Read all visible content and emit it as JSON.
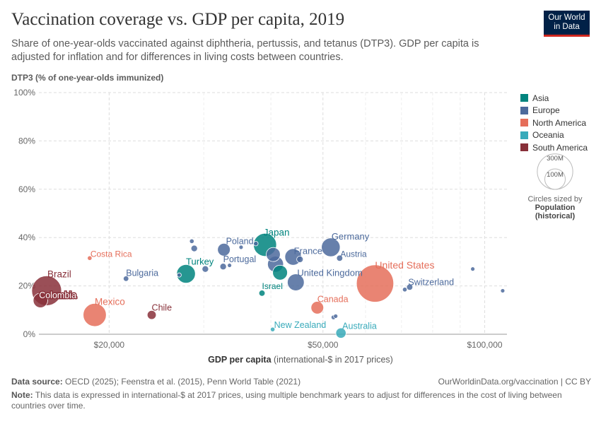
{
  "header": {
    "title": "Vaccination coverage vs. GDP per capita, 2019",
    "subtitle": "Share of one-year-olds vaccinated against diphtheria, pertussis, and tetanus (DTP3). GDP per capita is adjusted for inflation and for differences in living costs between countries.",
    "logo_line1": "Our World",
    "logo_line2": "in Data"
  },
  "footer": {
    "source_label": "Data source:",
    "source_text": " OECD (2025); Feenstra et al. (2015), Penn World Table (2021)",
    "right_text": "OurWorldinData.org/vaccination | CC BY",
    "note_label": "Note:",
    "note_text": " This data is expressed in international-$ at 2017 prices, using multiple benchmark years to adjust for differences in the cost of living between countries over time."
  },
  "size_legend": {
    "big": "300M",
    "small": "100M",
    "line1": "Circles sized by",
    "line2": "Population",
    "line3": "(historical)"
  },
  "colors": {
    "Asia": "#00847e",
    "Europe": "#4c6a9c",
    "North America": "#e56e5a",
    "Oceania": "#38aaba",
    "South America": "#883039"
  },
  "chart_data": {
    "type": "scatter",
    "xlabel_bold": "GDP per capita",
    "xlabel_rest": " (international-$ in 2017 prices)",
    "ylabel": "DTP3 (% of one-year-olds immunized)",
    "x_scale": "log",
    "xlim": [
      14800,
      110000
    ],
    "ylim": [
      0,
      100
    ],
    "x_ticks": [
      {
        "v": 20000,
        "label": "$20,000"
      },
      {
        "v": 50000,
        "label": "$50,000"
      },
      {
        "v": 100000,
        "label": "$100,000"
      }
    ],
    "y_ticks": [
      {
        "v": 0,
        "label": "0%"
      },
      {
        "v": 20,
        "label": "20%"
      },
      {
        "v": 40,
        "label": "40%"
      },
      {
        "v": 60,
        "label": "60%"
      },
      {
        "v": 80,
        "label": "80%"
      },
      {
        "v": 100,
        "label": "100%"
      }
    ],
    "legend": [
      "Asia",
      "Europe",
      "North America",
      "Oceania",
      "South America"
    ],
    "points": [
      {
        "label": "Brazil",
        "continent": "South America",
        "x": 15300,
        "y": 18,
        "pop": 211
      },
      {
        "label": "Colombia",
        "continent": "South America",
        "x": 14900,
        "y": 14,
        "pop": 50
      },
      {
        "label": "Chile",
        "continent": "South America",
        "x": 24000,
        "y": 8,
        "pop": 19
      },
      {
        "label": "Mexico",
        "continent": "North America",
        "x": 18800,
        "y": 8,
        "pop": 127
      },
      {
        "label": "Costa Rica",
        "continent": "North America",
        "x": 18400,
        "y": 31.5,
        "pop": 5
      },
      {
        "label": "United States",
        "continent": "North America",
        "x": 62500,
        "y": 21,
        "pop": 329
      },
      {
        "label": "Canada",
        "continent": "North America",
        "x": 48800,
        "y": 11,
        "pop": 38
      },
      {
        "label": "Japan",
        "continent": "Asia",
        "x": 39000,
        "y": 37,
        "pop": 126
      },
      {
        "label": "Turkey",
        "continent": "Asia",
        "x": 27800,
        "y": 25,
        "pop": 83
      },
      {
        "label": "Israel",
        "continent": "Asia",
        "x": 38500,
        "y": 17,
        "pop": 9
      },
      {
        "label": "",
        "continent": "Asia",
        "x": 41600,
        "y": 25.5,
        "pop": 52
      },
      {
        "label": "Germany",
        "continent": "Europe",
        "x": 51700,
        "y": 36,
        "pop": 83
      },
      {
        "label": "France",
        "continent": "Europe",
        "x": 44000,
        "y": 32,
        "pop": 65
      },
      {
        "label": "Austria",
        "continent": "Europe",
        "x": 53700,
        "y": 31.5,
        "pop": 9
      },
      {
        "label": "United Kingdom",
        "continent": "Europe",
        "x": 44500,
        "y": 21.5,
        "pop": 67
      },
      {
        "label": "Poland",
        "continent": "Europe",
        "x": 32700,
        "y": 35,
        "pop": 38
      },
      {
        "label": "Portugal",
        "continent": "Europe",
        "x": 32600,
        "y": 28,
        "pop": 10
      },
      {
        "label": "Bulgaria",
        "continent": "Europe",
        "x": 21500,
        "y": 23,
        "pop": 7
      },
      {
        "label": "Switzerland",
        "continent": "Europe",
        "x": 72500,
        "y": 19.5,
        "pop": 9
      },
      {
        "label": "",
        "continent": "Europe",
        "x": 28500,
        "y": 38.5,
        "pop": 5
      },
      {
        "label": "",
        "continent": "Europe",
        "x": 28800,
        "y": 35.5,
        "pop": 10
      },
      {
        "label": "",
        "continent": "Europe",
        "x": 35200,
        "y": 36,
        "pop": 2
      },
      {
        "label": "",
        "continent": "Europe",
        "x": 37500,
        "y": 37.5,
        "pop": 5
      },
      {
        "label": "",
        "continent": "Europe",
        "x": 40400,
        "y": 33,
        "pop": 47
      },
      {
        "label": "",
        "continent": "Europe",
        "x": 40800,
        "y": 29,
        "pop": 60
      },
      {
        "label": "",
        "continent": "Europe",
        "x": 45300,
        "y": 31,
        "pop": 10
      },
      {
        "label": "",
        "continent": "Europe",
        "x": 33500,
        "y": 28.5,
        "pop": 3
      },
      {
        "label": "",
        "continent": "Europe",
        "x": 30200,
        "y": 27,
        "pop": 10
      },
      {
        "label": "",
        "continent": "Europe",
        "x": 27000,
        "y": 24.5,
        "pop": 4
      },
      {
        "label": "",
        "continent": "Europe",
        "x": 52800,
        "y": 7.5,
        "pop": 3
      },
      {
        "label": "",
        "continent": "Europe",
        "x": 52300,
        "y": 7,
        "pop": 5
      },
      {
        "label": "",
        "continent": "Europe",
        "x": 71000,
        "y": 18.5,
        "pop": 5
      },
      {
        "label": "",
        "continent": "Europe",
        "x": 95000,
        "y": 27,
        "pop": 1
      },
      {
        "label": "",
        "continent": "Europe",
        "x": 108000,
        "y": 18,
        "pop": 1
      },
      {
        "label": "New Zealand",
        "continent": "Oceania",
        "x": 40300,
        "y": 2,
        "pop": 5
      },
      {
        "label": "Australia",
        "continent": "Oceania",
        "x": 54000,
        "y": 0.5,
        "pop": 25
      }
    ]
  }
}
